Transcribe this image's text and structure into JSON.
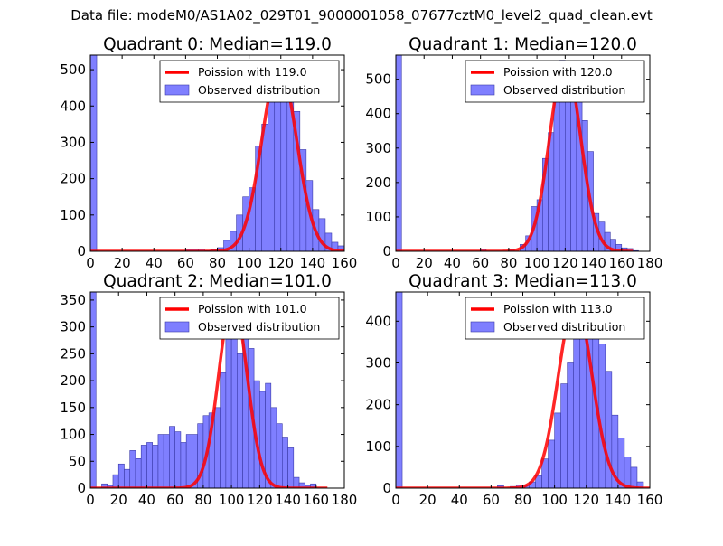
{
  "figure": {
    "suptitle": "Data file: modeM0/AS1A02_029T01_9000001058_07677cztM0_level2_quad_clean.evt"
  },
  "colors": {
    "poisson_line": "#ff0000",
    "hist_fill": "#7f7fff",
    "hist_edge": "#3a3aa8",
    "axis": "#000000",
    "legend_border": "#555555"
  },
  "chart_data": [
    {
      "type": "bar",
      "title": "Quadrant 0: Median=119.0",
      "median": 119.0,
      "xlim": [
        0,
        160
      ],
      "ylim": [
        0,
        540
      ],
      "xticks": [
        0,
        20,
        40,
        60,
        80,
        100,
        120,
        140,
        160
      ],
      "yticks": [
        0,
        100,
        200,
        300,
        400,
        500
      ],
      "bin_width": 4,
      "bins": [
        [
          0,
          540
        ],
        [
          60,
          6
        ],
        [
          64,
          6
        ],
        [
          68,
          6
        ],
        [
          72,
          2
        ],
        [
          76,
          4
        ],
        [
          80,
          10
        ],
        [
          84,
          30
        ],
        [
          88,
          55
        ],
        [
          92,
          100
        ],
        [
          96,
          150
        ],
        [
          100,
          175
        ],
        [
          104,
          290
        ],
        [
          108,
          350
        ],
        [
          112,
          430
        ],
        [
          116,
          450
        ],
        [
          120,
          475
        ],
        [
          124,
          430
        ],
        [
          128,
          385
        ],
        [
          132,
          280
        ],
        [
          136,
          195
        ],
        [
          140,
          115
        ],
        [
          144,
          90
        ],
        [
          148,
          50
        ],
        [
          152,
          25
        ],
        [
          156,
          15
        ]
      ],
      "poisson_lambda": 119.0,
      "poisson_peak": 510,
      "poisson_sigma": 10.9,
      "poisson_range": [
        0,
        160
      ],
      "legend": [
        "Poission with 119.0",
        "Observed distribution"
      ]
    },
    {
      "type": "bar",
      "title": "Quadrant 1: Median=120.0",
      "median": 120.0,
      "xlim": [
        0,
        180
      ],
      "ylim": [
        0,
        570
      ],
      "xticks": [
        0,
        20,
        40,
        60,
        80,
        100,
        120,
        140,
        160,
        180
      ],
      "yticks": [
        0,
        100,
        200,
        300,
        400,
        500
      ],
      "bin_width": 4,
      "bins": [
        [
          0,
          570
        ],
        [
          60,
          6
        ],
        [
          80,
          6
        ],
        [
          88,
          20
        ],
        [
          92,
          45
        ],
        [
          96,
          130
        ],
        [
          100,
          150
        ],
        [
          104,
          270
        ],
        [
          108,
          345
        ],
        [
          112,
          500
        ],
        [
          116,
          555
        ],
        [
          120,
          520
        ],
        [
          124,
          505
        ],
        [
          128,
          440
        ],
        [
          132,
          380
        ],
        [
          136,
          290
        ],
        [
          140,
          110
        ],
        [
          144,
          85
        ],
        [
          148,
          55
        ],
        [
          152,
          35
        ],
        [
          156,
          20
        ],
        [
          160,
          10
        ],
        [
          164,
          8
        ],
        [
          168,
          2
        ]
      ],
      "poisson_lambda": 120.0,
      "poisson_peak": 550,
      "poisson_sigma": 10.95,
      "poisson_range": [
        0,
        168
      ],
      "legend": [
        "Poission with 120.0",
        "Observed distribution"
      ]
    },
    {
      "type": "bar",
      "title": "Quadrant 2: Median=101.0",
      "median": 101.0,
      "xlim": [
        0,
        180
      ],
      "ylim": [
        0,
        365
      ],
      "xticks": [
        0,
        20,
        40,
        60,
        80,
        100,
        120,
        140,
        160,
        180
      ],
      "yticks": [
        0,
        50,
        100,
        150,
        200,
        250,
        300,
        350
      ],
      "bin_width": 4,
      "bins": [
        [
          0,
          365
        ],
        [
          8,
          8
        ],
        [
          12,
          5
        ],
        [
          16,
          25
        ],
        [
          20,
          45
        ],
        [
          24,
          35
        ],
        [
          28,
          70
        ],
        [
          32,
          55
        ],
        [
          36,
          80
        ],
        [
          40,
          85
        ],
        [
          44,
          80
        ],
        [
          48,
          100
        ],
        [
          52,
          100
        ],
        [
          56,
          115
        ],
        [
          60,
          105
        ],
        [
          64,
          85
        ],
        [
          68,
          100
        ],
        [
          72,
          100
        ],
        [
          76,
          120
        ],
        [
          80,
          135
        ],
        [
          84,
          140
        ],
        [
          88,
          150
        ],
        [
          92,
          215
        ],
        [
          96,
          300
        ],
        [
          100,
          350
        ],
        [
          104,
          250
        ],
        [
          108,
          345
        ],
        [
          112,
          260
        ],
        [
          116,
          200
        ],
        [
          120,
          180
        ],
        [
          124,
          195
        ],
        [
          128,
          150
        ],
        [
          132,
          120
        ],
        [
          136,
          95
        ],
        [
          140,
          75
        ],
        [
          144,
          20
        ],
        [
          148,
          10
        ],
        [
          152,
          5
        ],
        [
          156,
          8
        ]
      ],
      "poisson_lambda": 101.0,
      "poisson_peak": 350,
      "poisson_sigma": 10.05,
      "poisson_range": [
        0,
        168
      ],
      "legend": [
        "Poission with 101.0",
        "Observed distribution"
      ]
    },
    {
      "type": "bar",
      "title": "Quadrant 3: Median=113.0",
      "median": 113.0,
      "xlim": [
        0,
        160
      ],
      "ylim": [
        0,
        470
      ],
      "xticks": [
        0,
        20,
        40,
        60,
        80,
        100,
        120,
        140,
        160
      ],
      "yticks": [
        0,
        100,
        200,
        300,
        400
      ],
      "bin_width": 4,
      "bins": [
        [
          0,
          470
        ],
        [
          64,
          6
        ],
        [
          72,
          4
        ],
        [
          76,
          8
        ],
        [
          80,
          8
        ],
        [
          84,
          15
        ],
        [
          88,
          30
        ],
        [
          92,
          70
        ],
        [
          96,
          115
        ],
        [
          100,
          180
        ],
        [
          104,
          250
        ],
        [
          108,
          300
        ],
        [
          112,
          405
        ],
        [
          116,
          445
        ],
        [
          120,
          435
        ],
        [
          124,
          390
        ],
        [
          128,
          345
        ],
        [
          132,
          280
        ],
        [
          136,
          175
        ],
        [
          140,
          120
        ],
        [
          144,
          75
        ],
        [
          148,
          50
        ],
        [
          152,
          15
        ]
      ],
      "poisson_lambda": 113.0,
      "poisson_peak": 445,
      "poisson_sigma": 10.63,
      "poisson_range": [
        0,
        160
      ],
      "legend": [
        "Poission with 113.0",
        "Observed distribution"
      ]
    }
  ]
}
